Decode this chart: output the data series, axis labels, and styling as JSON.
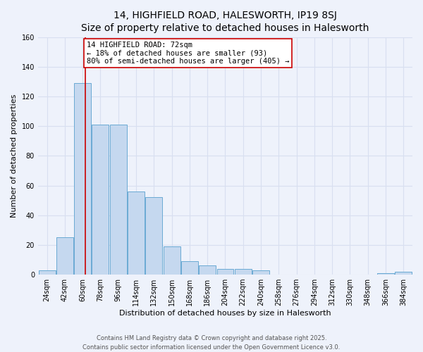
{
  "title": "14, HIGHFIELD ROAD, HALESWORTH, IP19 8SJ",
  "subtitle": "Size of property relative to detached houses in Halesworth",
  "xlabel": "Distribution of detached houses by size in Halesworth",
  "ylabel": "Number of detached properties",
  "bar_color": "#c5d8ef",
  "bar_edge_color": "#6aaad4",
  "background_color": "#eef2fb",
  "grid_color": "#d8dff0",
  "categories": [
    "24sqm",
    "42sqm",
    "60sqm",
    "78sqm",
    "96sqm",
    "114sqm",
    "132sqm",
    "150sqm",
    "168sqm",
    "186sqm",
    "204sqm",
    "222sqm",
    "240sqm",
    "258sqm",
    "276sqm",
    "294sqm",
    "312sqm",
    "330sqm",
    "348sqm",
    "366sqm",
    "384sqm"
  ],
  "values": [
    3,
    25,
    129,
    101,
    101,
    56,
    52,
    19,
    9,
    6,
    4,
    4,
    3,
    0,
    0,
    0,
    0,
    0,
    0,
    1,
    2
  ],
  "bin_starts": [
    24,
    42,
    60,
    78,
    96,
    114,
    132,
    150,
    168,
    186,
    204,
    222,
    240,
    258,
    276,
    294,
    312,
    330,
    348,
    366,
    384
  ],
  "bin_width": 18,
  "ylim": [
    0,
    160
  ],
  "yticks": [
    0,
    20,
    40,
    60,
    80,
    100,
    120,
    140,
    160
  ],
  "property_line_x": 72,
  "property_line_color": "#cc0000",
  "annotation_text": "14 HIGHFIELD ROAD: 72sqm\n← 18% of detached houses are smaller (93)\n80% of semi-detached houses are larger (405) →",
  "annotation_box_color": "#ffffff",
  "annotation_box_edge": "#cc0000",
  "footer_line1": "Contains HM Land Registry data © Crown copyright and database right 2025.",
  "footer_line2": "Contains public sector information licensed under the Open Government Licence v3.0.",
  "title_fontsize": 10,
  "subtitle_fontsize": 9,
  "axis_label_fontsize": 8,
  "tick_fontsize": 7,
  "annotation_fontsize": 7.5,
  "footer_fontsize": 6
}
